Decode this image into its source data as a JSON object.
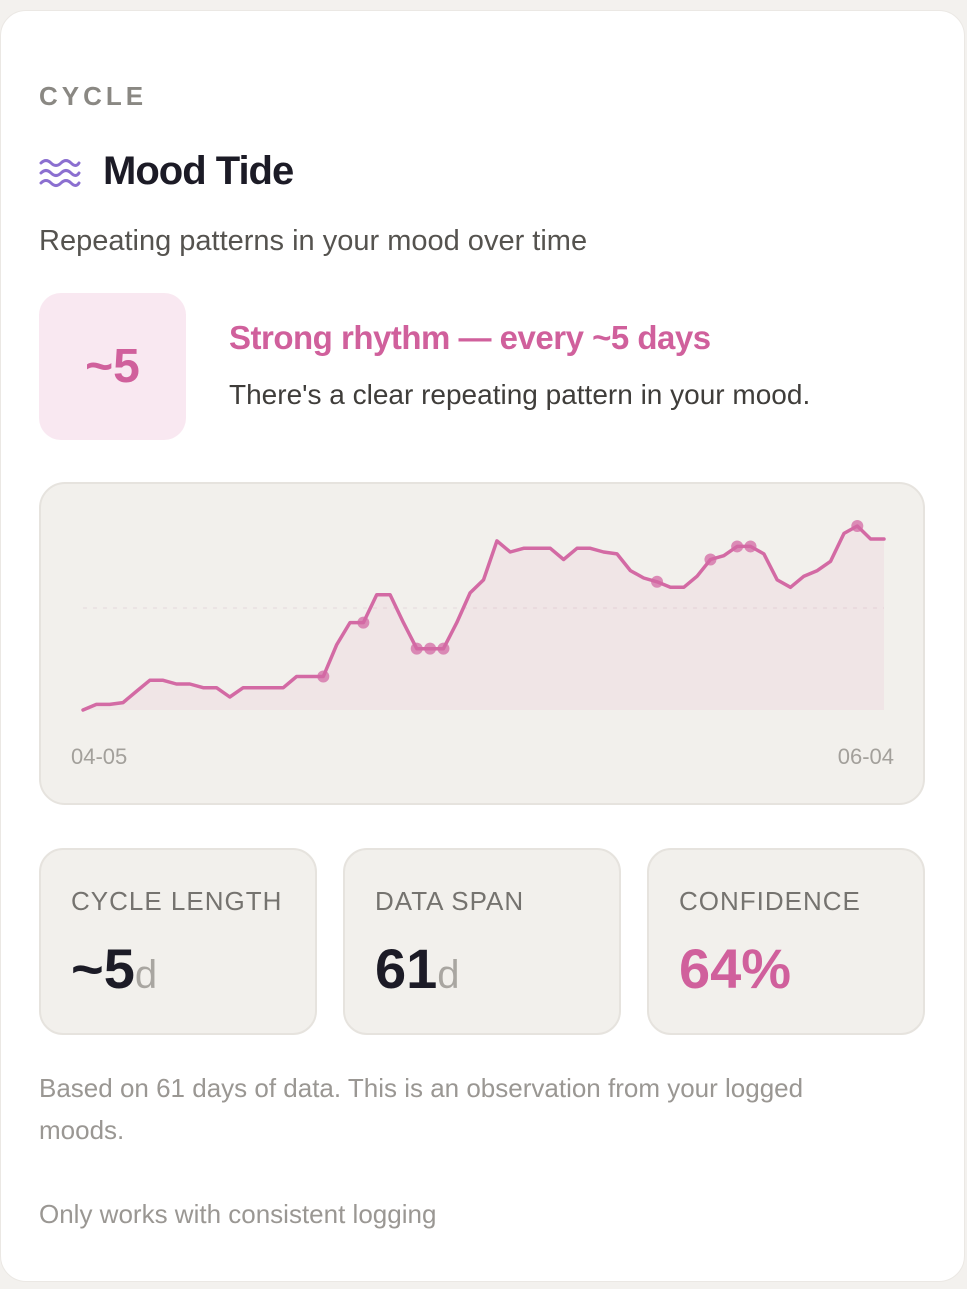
{
  "header": {
    "eyebrow": "CYCLE",
    "title": "Mood Tide",
    "subtitle": "Repeating patterns in your mood over time"
  },
  "rhythm": {
    "badge": "~5",
    "headline": "Strong rhythm — every ~5 days",
    "description": "There's a clear repeating pattern in your mood."
  },
  "chart_data": {
    "type": "line",
    "color": "#d36aa4",
    "categories": [
      "04-05",
      null,
      null,
      null,
      null,
      null,
      null,
      null,
      null,
      null,
      null,
      null,
      null,
      null,
      null,
      null,
      null,
      null,
      null,
      null,
      null,
      null,
      null,
      null,
      null,
      null,
      null,
      null,
      null,
      null,
      null,
      null,
      null,
      null,
      null,
      null,
      null,
      null,
      null,
      null,
      null,
      null,
      null,
      null,
      null,
      null,
      null,
      null,
      null,
      null,
      null,
      null,
      null,
      null,
      null,
      null,
      null,
      null,
      null,
      null,
      "06-04"
    ],
    "values": [
      0,
      0.3,
      0.3,
      0.4,
      1,
      1.6,
      1.6,
      1.4,
      1.4,
      1.2,
      1.2,
      0.7,
      1.2,
      1.2,
      1.2,
      1.2,
      1.8,
      1.8,
      1.8,
      3.5,
      4.7,
      4.7,
      6.2,
      6.2,
      4.7,
      3.3,
      3.3,
      3.3,
      4.7,
      6.3,
      7,
      9.1,
      8.5,
      8.7,
      8.7,
      8.7,
      8.1,
      8.7,
      8.7,
      8.5,
      8.4,
      7.5,
      7.1,
      6.9,
      6.6,
      6.6,
      7.2,
      8.1,
      8.3,
      8.8,
      8.8,
      8.4,
      7,
      6.6,
      7.2,
      7.5,
      8,
      9.5,
      9.9,
      9.2,
      9.2
    ],
    "marker_indices": [
      18,
      21,
      25,
      26,
      27,
      43,
      47,
      49,
      50,
      58
    ]
  },
  "stats": [
    {
      "label": "CYCLE LENGTH",
      "value": "~5",
      "unit": "d"
    },
    {
      "label": "DATA SPAN",
      "value": "61",
      "unit": "d"
    },
    {
      "label": "CONFIDENCE",
      "value": "64%"
    }
  ],
  "footnotes": [
    "Based on 61 days of data. This is an observation from your logged moods.",
    "Only works with consistent logging"
  ]
}
